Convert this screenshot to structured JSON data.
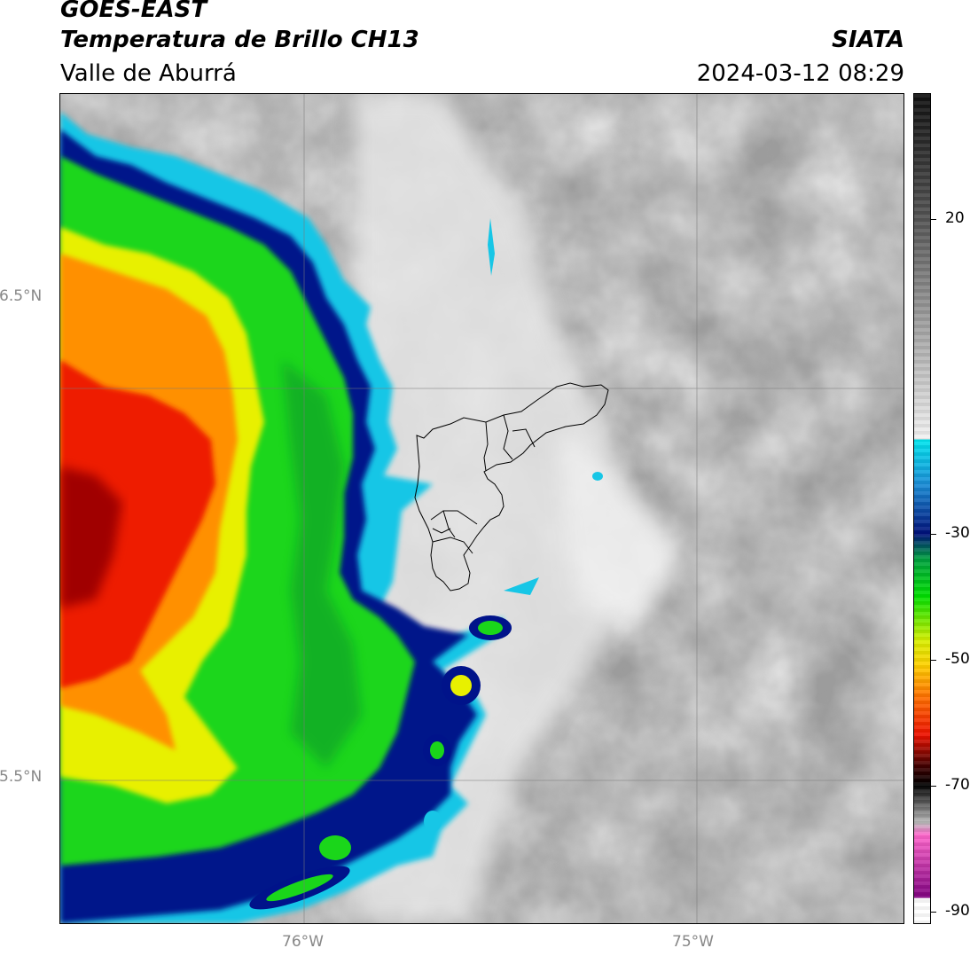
{
  "header": {
    "satellite": "GOES-EAST",
    "product": "Temperatura de Brillo CH13",
    "region": "Valle de Aburrá",
    "brand": "SIATA",
    "timestamp": "2024-03-12 08:29"
  },
  "map": {
    "lat_labels": [
      "6.5°N",
      "5.5°N"
    ],
    "lon_labels": [
      "76°W",
      "75°W"
    ],
    "gridlines": true
  },
  "colorbar": {
    "ticks": [
      "20",
      "-30",
      "-50",
      "-70",
      "-90"
    ],
    "tick_values": [
      20,
      -30,
      -50,
      -70,
      -90
    ],
    "range": [
      -92,
      40
    ],
    "stops": [
      {
        "v": 40,
        "c": "#111111"
      },
      {
        "v": 20,
        "c": "#555555"
      },
      {
        "v": 5,
        "c": "#999999"
      },
      {
        "v": -15,
        "c": "#f2f2f2"
      },
      {
        "v": -15.01,
        "c": "#00e5ee"
      },
      {
        "v": -22,
        "c": "#1a8fd8"
      },
      {
        "v": -30,
        "c": "#00107a"
      },
      {
        "v": -34,
        "c": "#00a040"
      },
      {
        "v": -40,
        "c": "#00e000"
      },
      {
        "v": -47,
        "c": "#d8f000"
      },
      {
        "v": -51,
        "c": "#ffd000"
      },
      {
        "v": -56,
        "c": "#ff7000"
      },
      {
        "v": -62,
        "c": "#ee1100"
      },
      {
        "v": -67,
        "c": "#400000"
      },
      {
        "v": -70,
        "c": "#000000"
      },
      {
        "v": -76,
        "c": "#bbbbbb"
      },
      {
        "v": -78,
        "c": "#ff66cc"
      },
      {
        "v": -88,
        "c": "#800080"
      },
      {
        "v": -88.01,
        "c": "#ffffff"
      }
    ]
  }
}
